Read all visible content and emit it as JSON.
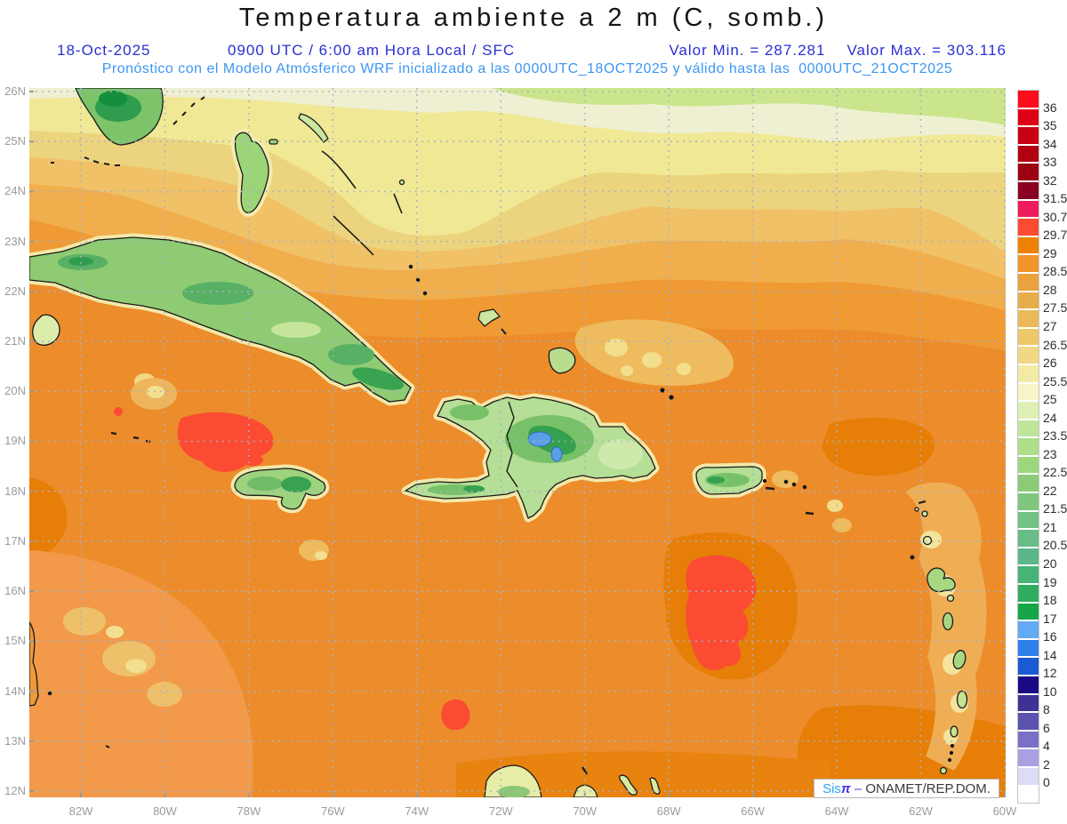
{
  "header": {
    "title": "Temperatura ambiente a 2 m (C, somb.)",
    "date": "18-Oct-2025",
    "time": "0900 UTC / 6:00 am Hora Local / SFC",
    "valor_min": "Valor Min. = 287.281",
    "valor_max": "Valor Max. = 303.116",
    "forecast": "Pronóstico con el Modelo Atmósferico WRF inicializado a las 0000UTC_18OCT2025 y válido hasta las  0000UTC_21OCT2025"
  },
  "axes": {
    "lat": [
      "26N",
      "25N",
      "24N",
      "23N",
      "22N",
      "21N",
      "20N",
      "19N",
      "18N",
      "17N",
      "16N",
      "15N",
      "14N",
      "13N",
      "12N"
    ],
    "lon": [
      "82W",
      "80W",
      "78W",
      "76W",
      "74W",
      "72W",
      "70W",
      "68W",
      "66W",
      "64W",
      "62W",
      "60W"
    ]
  },
  "colorbar": {
    "labels": [
      "36",
      "35",
      "34",
      "33",
      "32",
      "31.5",
      "30.7",
      "29.7",
      "29",
      "28.5",
      "28",
      "27.5",
      "27",
      "26.5",
      "26",
      "25.5",
      "25",
      "24",
      "23.5",
      "23",
      "22.5",
      "22",
      "21.5",
      "21",
      "20.5",
      "20",
      "19",
      "18",
      "17",
      "16",
      "14",
      "12",
      "10",
      "8",
      "6",
      "4",
      "2",
      "0"
    ],
    "colors": [
      "#fb0d1b",
      "#df0015",
      "#c80012",
      "#b20112",
      "#9c0011",
      "#8a0023",
      "#ee1c5c",
      "#fb4b33",
      "#ef8100",
      "#f2952b",
      "#e9a23d",
      "#e7ad4b",
      "#eaba59",
      "#edc869",
      "#f0d884",
      "#f3eba5",
      "#f6f4c8",
      "#dff0b5",
      "#bfe59b",
      "#aede89",
      "#9dd77d",
      "#8bcb78",
      "#7fc67e",
      "#73c184",
      "#67bc87",
      "#5bb78a",
      "#47b377",
      "#2fac5f",
      "#17a54a",
      "#64a9f3",
      "#2f7fe8",
      "#1a5ad2",
      "#190a85",
      "#3d3397",
      "#5c53ae",
      "#7a71c6",
      "#a8a0e0",
      "#dcdcf6",
      "#ffffff"
    ]
  },
  "attribution": {
    "sis": "Sis",
    "pi": "π",
    "dash": " – ",
    "org": "ONAMET/REP.DOM."
  },
  "colors": {
    "header_blue": "#2a2fd2",
    "header_lightblue": "#3d97f2",
    "axis_gray": "#9b9b9b",
    "grid_dots": "#a6b2c6",
    "ocean_base": "#ed8c2b",
    "hot_spot": "#fb4b33",
    "land_green": "#8ecb72",
    "lake_blue": "#5b9fe8"
  },
  "chart_data": {
    "type": "heatmap",
    "title": "Temperatura ambiente a 2 m (C, somb.)",
    "units": "C",
    "valor_min": 287.281,
    "valor_max": 303.116,
    "model": "WRF",
    "init": "0000UTC_18OCT2025",
    "valid_until": "0000UTC_21OCT2025",
    "valid_at": "18-Oct-2025 0900 UTC / 6:00 am Hora Local / SFC",
    "lat_range": [
      "12N",
      "26N"
    ],
    "lon_range": [
      "83W",
      "60W"
    ],
    "lat_ticks": [
      "26N",
      "25N",
      "24N",
      "23N",
      "22N",
      "21N",
      "20N",
      "19N",
      "18N",
      "17N",
      "16N",
      "15N",
      "14N",
      "13N",
      "12N"
    ],
    "lon_ticks": [
      "82W",
      "80W",
      "78W",
      "76W",
      "74W",
      "72W",
      "70W",
      "68W",
      "66W",
      "64W",
      "62W",
      "60W"
    ],
    "levels": [
      0,
      2,
      4,
      6,
      8,
      10,
      12,
      14,
      16,
      17,
      18,
      19,
      20,
      20.5,
      21,
      21.5,
      22,
      22.5,
      23,
      23.5,
      24,
      25,
      25.5,
      26,
      26.5,
      27,
      27.5,
      28,
      28.5,
      29,
      29.7,
      30.7,
      31.5,
      32,
      33,
      34,
      35,
      36
    ],
    "legend_position": "right",
    "grid": true,
    "field_summary": "Ocean mostly 28.5-29.7 C, cooler 25-27 C band along 24-26N with 23-25 C at the far north edge; land interiors (Florida, Cuba, Jamaica, Hispaniola, Puerto Rico, Lesser Antilles) 17-25 C; hot spots 30.7-31.5 C near 80W/19.5N, 66W/16N, 72.5W/14N and a speck near 82W/20.5N"
  }
}
